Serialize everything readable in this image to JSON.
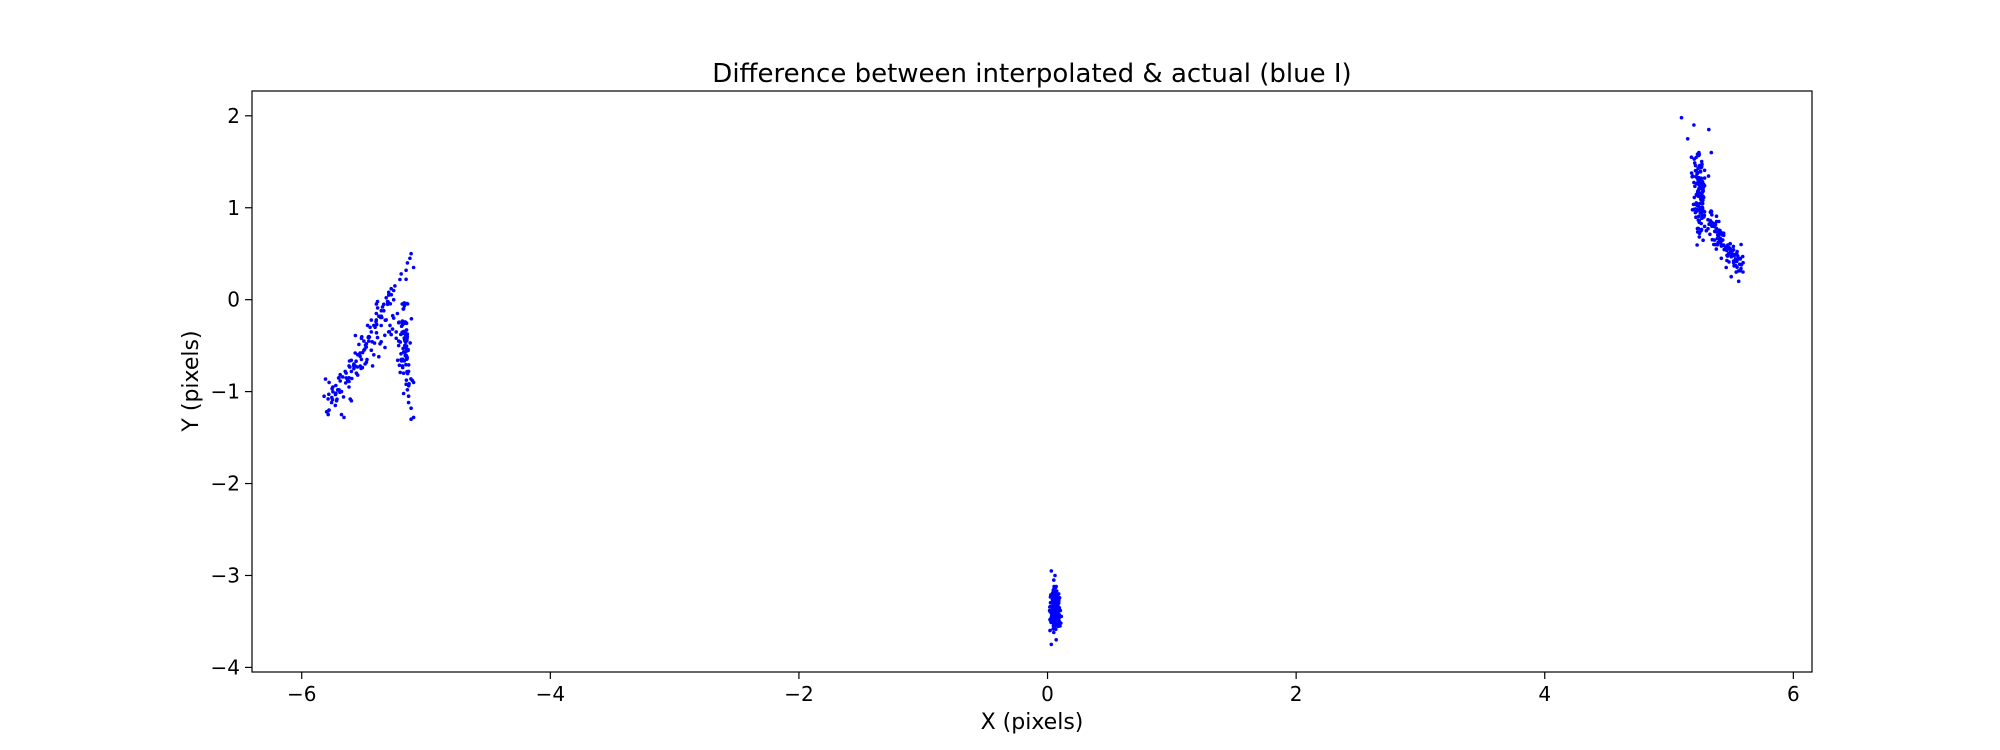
{
  "chart_data": {
    "type": "scatter",
    "title": "Difference between interpolated & actual (blue I)",
    "xlabel": "X (pixels)",
    "ylabel": "Y (pixels)",
    "xlim": [
      -6.4,
      6.15
    ],
    "ylim": [
      -4.05,
      2.27
    ],
    "xticks": [
      -6,
      -4,
      -2,
      0,
      2,
      4,
      6
    ],
    "yticks": [
      -4,
      -3,
      -2,
      -1,
      0,
      1,
      2
    ],
    "grid": false,
    "marker_color": "#0000ff",
    "clusters": [
      {
        "x": [
          -5.82,
          -5.78,
          -5.75,
          -5.72,
          -5.7,
          -5.68,
          -5.65,
          -5.62,
          -5.6,
          -5.58,
          -5.55,
          -5.52,
          -5.5,
          -5.48,
          -5.46,
          -5.44,
          -5.42,
          -5.4,
          -5.38,
          -5.36,
          -5.34,
          -5.32,
          -5.3,
          -5.28,
          -5.26,
          -5.24,
          -5.22,
          -5.2,
          -5.18,
          -5.16,
          -5.14,
          -5.12,
          -5.1,
          -5.55,
          -5.5,
          -5.45,
          -5.4,
          -5.35,
          -5.3,
          -5.25,
          -5.2,
          -5.15,
          -5.12,
          -5.1,
          -5.18,
          -5.22,
          -5.28,
          -5.33,
          -5.38,
          -5.43,
          -5.48,
          -5.53,
          -5.58,
          -5.63,
          -5.68,
          -5.73,
          -5.78,
          -5.8,
          -5.46,
          -5.41,
          -5.36,
          -5.31,
          -5.26,
          -5.21,
          -5.16,
          -5.13,
          -5.11,
          -5.24,
          -5.29,
          -5.34,
          -5.39,
          -5.44,
          -5.49,
          -5.56,
          -5.61,
          -5.66,
          -5.71,
          -5.76,
          -5.19,
          -5.15,
          -5.14,
          -5.17,
          -5.23,
          -5.27,
          -5.32,
          -5.37,
          -5.42,
          -5.47,
          -5.52,
          -5.57,
          -5.62,
          -5.67,
          -5.12,
          -5.1,
          -5.14,
          -5.18,
          -5.22,
          -5.26,
          -5.3
        ],
        "y": [
          -1.05,
          -1.2,
          -0.95,
          -1.1,
          -0.85,
          -1.25,
          -0.78,
          -0.95,
          -1.1,
          -0.7,
          -0.82,
          -0.65,
          -0.55,
          -0.48,
          -0.4,
          -0.35,
          -0.28,
          -0.22,
          -0.18,
          -0.12,
          -0.05,
          0.02,
          0.08,
          0.12,
          -0.2,
          -0.35,
          -0.5,
          -0.65,
          -0.8,
          -0.92,
          -1.05,
          -1.18,
          -1.28,
          -0.6,
          -0.45,
          -0.3,
          -0.15,
          -0.08,
          0.05,
          0.15,
          0.28,
          0.4,
          0.5,
          0.35,
          -0.1,
          -0.25,
          -0.38,
          -0.52,
          -0.62,
          -0.72,
          -0.68,
          -0.58,
          -0.75,
          -0.88,
          -1.0,
          -1.15,
          -0.9,
          -1.22,
          -0.45,
          -0.3,
          -0.18,
          -0.02,
          0.1,
          0.22,
          0.32,
          0.45,
          -0.88,
          -0.42,
          -0.28,
          -0.12,
          -0.02,
          -0.55,
          -0.7,
          -0.8,
          -1.08,
          -1.28,
          -0.98,
          -1.12,
          -0.72,
          -0.98,
          -1.12,
          -0.58,
          -0.15,
          -0.32,
          -0.22,
          -0.48,
          -0.6,
          -0.28,
          -0.42,
          -0.58,
          -0.72,
          -0.84,
          -1.3,
          -0.9,
          -0.78,
          -1.02,
          -0.45,
          0.0,
          -0.35
        ],
        "center": [
          -5.3,
          -0.4
        ],
        "count": 240,
        "spread": [
          0.18,
          0.38
        ]
      },
      {
        "x": [
          0.03,
          0.05,
          0.07,
          0.09,
          0.04,
          0.06,
          0.08,
          0.02,
          0.1,
          0.05,
          0.07,
          0.03,
          0.06,
          0.08,
          0.04,
          0.09,
          0.05,
          0.07,
          0.02,
          0.06
        ],
        "y": [
          -2.95,
          -3.05,
          -3.12,
          -3.2,
          -3.28,
          -3.35,
          -3.42,
          -3.48,
          -3.55,
          -3.62,
          -3.7,
          -3.75,
          -3.22,
          -3.38,
          -3.5,
          -3.3,
          -3.15,
          -3.45,
          -3.6,
          -3.0
        ],
        "center": [
          0.06,
          -3.38
        ],
        "count": 260,
        "spread": [
          0.03,
          0.17
        ]
      },
      {
        "x": [
          5.1,
          5.15,
          5.18,
          5.2,
          5.22,
          5.24,
          5.26,
          5.28,
          5.3,
          5.32,
          5.34,
          5.36,
          5.38,
          5.4,
          5.42,
          5.44,
          5.46,
          5.48,
          5.5,
          5.52,
          5.54,
          5.56,
          5.58
        ],
        "y": [
          1.98,
          1.75,
          1.55,
          1.9,
          1.4,
          1.2,
          1.05,
          0.9,
          0.75,
          1.85,
          1.6,
          0.6,
          0.55,
          0.85,
          0.45,
          0.7,
          0.35,
          0.5,
          0.25,
          0.4,
          0.3,
          0.2,
          0.6
        ],
        "center": [
          5.3,
          1.0
        ],
        "count": 260,
        "spread": [
          0.12,
          0.38
        ]
      }
    ]
  }
}
